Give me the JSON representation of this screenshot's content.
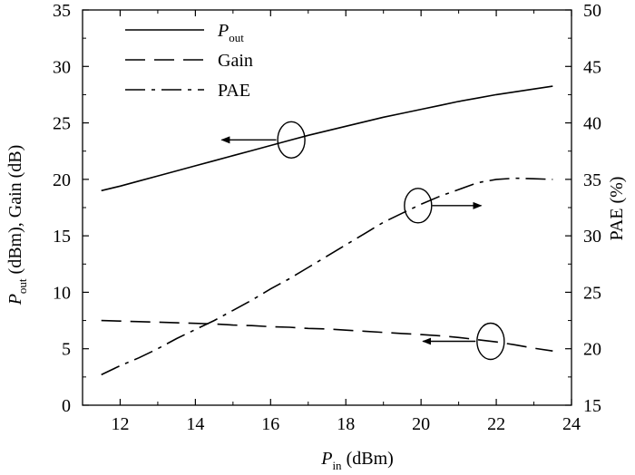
{
  "chart_data": {
    "type": "line",
    "x": [
      11.5,
      12,
      12.5,
      13,
      13.5,
      14,
      14.5,
      15,
      15.5,
      16,
      16.5,
      17,
      17.5,
      18,
      18.5,
      19,
      19.5,
      20,
      20.5,
      21,
      21.5,
      22,
      22.5,
      23,
      23.5
    ],
    "xlabel": {
      "main": "P",
      "sub": "in",
      "rest": " (dBm)"
    },
    "ylabel_left": {
      "main": "P",
      "sub": "out",
      "rest": " (dBm), Gain (dB)"
    },
    "ylabel_right": "PAE (%)",
    "xlim": [
      11,
      24
    ],
    "ylim_left": [
      0,
      35
    ],
    "ylim_right": [
      15,
      50
    ],
    "xticks": [
      "12",
      "14",
      "16",
      "18",
      "20",
      "22",
      "24"
    ],
    "yticks_left": [
      "0",
      "5",
      "10",
      "15",
      "20",
      "25",
      "30",
      "35"
    ],
    "yticks_right": [
      "15",
      "20",
      "25",
      "30",
      "35",
      "40",
      "45",
      "50"
    ],
    "series": [
      {
        "name": "Pout",
        "legend_main": "P",
        "legend_sub": "out",
        "axis": "left",
        "style": "solid",
        "values": [
          19.0,
          19.4,
          19.85,
          20.3,
          20.75,
          21.2,
          21.65,
          22.1,
          22.55,
          23.0,
          23.45,
          23.9,
          24.3,
          24.7,
          25.1,
          25.5,
          25.85,
          26.2,
          26.55,
          26.9,
          27.2,
          27.5,
          27.75,
          28.0,
          28.25
        ]
      },
      {
        "name": "Gain",
        "legend_main": "Gain",
        "legend_sub": "",
        "axis": "left",
        "style": "dashed",
        "values": [
          7.5,
          7.45,
          7.4,
          7.35,
          7.3,
          7.25,
          7.2,
          7.1,
          7.05,
          6.95,
          6.9,
          6.8,
          6.75,
          6.65,
          6.55,
          6.45,
          6.35,
          6.25,
          6.15,
          6.0,
          5.8,
          5.6,
          5.35,
          5.05,
          4.8
        ]
      },
      {
        "name": "PAE",
        "legend_main": "PAE",
        "legend_sub": "",
        "axis": "right",
        "style": "dashdot",
        "values": [
          17.7,
          18.5,
          19.2,
          20.0,
          20.9,
          21.7,
          22.5,
          23.4,
          24.3,
          25.3,
          26.2,
          27.2,
          28.2,
          29.2,
          30.2,
          31.2,
          32.0,
          32.8,
          33.5,
          34.1,
          34.7,
          35.0,
          35.1,
          35.05,
          35.0
        ]
      }
    ],
    "annotations": [
      {
        "target": "Pout",
        "points_to": "left axis"
      },
      {
        "target": "PAE",
        "points_to": "right axis"
      },
      {
        "target": "Gain",
        "points_to": "left axis"
      }
    ],
    "grid": false,
    "legend_position": "top-left"
  }
}
